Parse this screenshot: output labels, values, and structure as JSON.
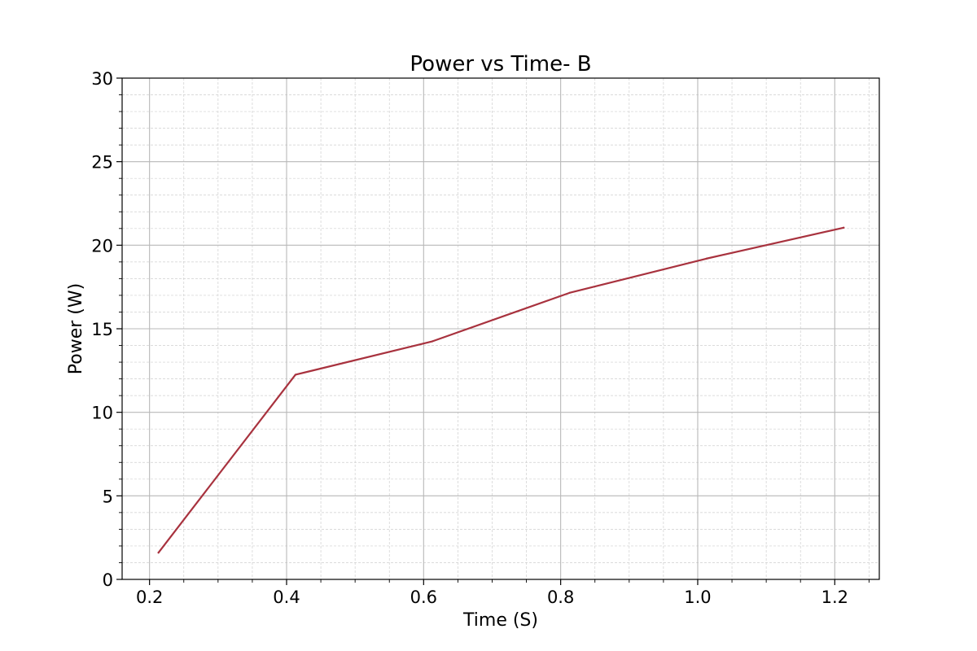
{
  "chart_data": {
    "type": "line",
    "title": "Power vs Time- B",
    "xlabel": "Time (S)",
    "ylabel": "Power (W)",
    "xlim": [
      0.16,
      1.265
    ],
    "ylim": [
      0,
      30
    ],
    "x_ticks": [
      "0.2",
      "0.4",
      "0.6",
      "0.8",
      "1.0",
      "1.2"
    ],
    "y_ticks": [
      "0",
      "5",
      "10",
      "15",
      "20",
      "25",
      "30"
    ],
    "grid": true,
    "minor_grid": true,
    "legend": "none",
    "series": [
      {
        "color": "#a8323e",
        "x": [
          0.213,
          0.413,
          0.613,
          0.813,
          1.013,
          1.213
        ],
        "y": [
          1.6,
          12.25,
          14.25,
          17.15,
          19.2,
          21.05
        ]
      }
    ]
  }
}
